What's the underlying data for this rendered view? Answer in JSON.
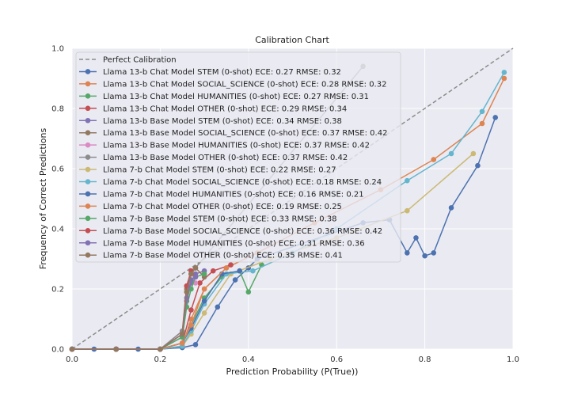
{
  "chart_data": {
    "type": "line",
    "title": "Calibration Chart",
    "xlabel": "Prediction Probability (P(True))",
    "ylabel": "Frequency of Correct Predictions",
    "xlim": [
      0,
      1
    ],
    "ylim": [
      0,
      1
    ],
    "xticks": [
      "0.0",
      "0.2",
      "0.4",
      "0.6",
      "0.8",
      "1.0"
    ],
    "yticks": [
      "0.0",
      "0.2",
      "0.4",
      "0.6",
      "0.8",
      "1.0"
    ],
    "grid": true,
    "legend_position": "upper-left",
    "reference": {
      "name": "Perfect Calibration",
      "x": [
        0,
        1
      ],
      "y": [
        0,
        1
      ],
      "color": "#8c8c8c",
      "style": "dashed"
    },
    "series": [
      {
        "name": "Llama 13-b Chat Model STEM (0-shot) ECE: 0.27 RMSE: 0.32",
        "color": "#4c72b0",
        "x": [
          0.0,
          0.05,
          0.1,
          0.15,
          0.2,
          0.25,
          0.28,
          0.33,
          0.37,
          0.4,
          0.42,
          0.66,
          0.72,
          0.76,
          0.78,
          0.8,
          0.82,
          0.86,
          0.92,
          0.96
        ],
        "y": [
          0.0,
          0.0,
          0.0,
          0.0,
          0.0,
          0.005,
          0.015,
          0.14,
          0.23,
          0.27,
          0.3,
          0.42,
          0.43,
          0.32,
          0.37,
          0.31,
          0.32,
          0.47,
          0.61,
          0.77
        ]
      },
      {
        "name": "Llama 13-b Chat Model SOCIAL_SCIENCE (0-shot) ECE: 0.28 RMSE: 0.32",
        "color": "#dd8452",
        "x": [
          0.0,
          0.1,
          0.2,
          0.25,
          0.27,
          0.3,
          0.35,
          0.42,
          0.55,
          0.7,
          0.82,
          0.93,
          0.98
        ],
        "y": [
          0.0,
          0.0,
          0.0,
          0.01,
          0.1,
          0.2,
          0.27,
          0.32,
          0.42,
          0.53,
          0.63,
          0.75,
          0.9
        ]
      },
      {
        "name": "Llama 13-b Chat Model HUMANITIES (0-shot) ECE: 0.27 RMSE: 0.31",
        "color": "#55a868",
        "x": [
          0.0,
          0.1,
          0.2,
          0.25,
          0.27,
          0.3,
          0.34,
          0.38,
          0.4,
          0.43
        ],
        "y": [
          0.0,
          0.0,
          0.0,
          0.02,
          0.08,
          0.17,
          0.24,
          0.26,
          0.19,
          0.28
        ]
      },
      {
        "name": "Llama 13-b Chat Model OTHER (0-shot) ECE: 0.29 RMSE: 0.34",
        "color": "#c44e52",
        "x": [
          0.0,
          0.1,
          0.2,
          0.25,
          0.27,
          0.29,
          0.32,
          0.36
        ],
        "y": [
          0.0,
          0.0,
          0.0,
          0.02,
          0.13,
          0.22,
          0.26,
          0.28
        ]
      },
      {
        "name": "Llama 13-b Base Model STEM (0-shot) ECE: 0.34 RMSE: 0.38",
        "color": "#8172b3",
        "x": [
          0.0,
          0.1,
          0.2,
          0.25,
          0.26,
          0.27,
          0.28,
          0.3
        ],
        "y": [
          0.0,
          0.0,
          0.0,
          0.04,
          0.16,
          0.22,
          0.25,
          0.26
        ]
      },
      {
        "name": "Llama 13-b Base Model SOCIAL_SCIENCE (0-shot) ECE: 0.37 RMSE: 0.42",
        "color": "#937860",
        "x": [
          0.0,
          0.1,
          0.2,
          0.25,
          0.26,
          0.27,
          0.28,
          0.3
        ],
        "y": [
          0.0,
          0.0,
          0.0,
          0.05,
          0.2,
          0.25,
          0.27,
          0.24
        ]
      },
      {
        "name": "Llama 13-b Base Model HUMANITIES (0-shot) ECE: 0.37 RMSE: 0.42",
        "color": "#da8bc3",
        "x": [
          0.0,
          0.1,
          0.2,
          0.25,
          0.26,
          0.27,
          0.28
        ],
        "y": [
          0.0,
          0.0,
          0.0,
          0.06,
          0.19,
          0.23,
          0.22
        ]
      },
      {
        "name": "Llama 13-b Base Model OTHER (0-shot) ECE: 0.37 RMSE: 0.42",
        "color": "#8c8c8c",
        "x": [
          0.0,
          0.1,
          0.2,
          0.25,
          0.26,
          0.27,
          0.28,
          0.66
        ],
        "y": [
          0.0,
          0.0,
          0.0,
          0.06,
          0.21,
          0.25,
          0.27,
          0.94
        ]
      },
      {
        "name": "Llama 7-b Chat Model STEM (0-shot) ECE: 0.22 RMSE: 0.27",
        "color": "#ccb974",
        "x": [
          0.0,
          0.1,
          0.2,
          0.25,
          0.27,
          0.3,
          0.36,
          0.45,
          0.6,
          0.76,
          0.91
        ],
        "y": [
          0.0,
          0.0,
          0.0,
          0.01,
          0.05,
          0.12,
          0.25,
          0.3,
          0.37,
          0.46,
          0.65
        ]
      },
      {
        "name": "Llama 7-b Chat Model SOCIAL_SCIENCE (0-shot) ECE: 0.18 RMSE: 0.24",
        "color": "#64b5cd",
        "x": [
          0.0,
          0.1,
          0.2,
          0.25,
          0.27,
          0.3,
          0.35,
          0.41,
          0.5,
          0.6,
          0.76,
          0.86,
          0.93,
          0.98
        ],
        "y": [
          0.0,
          0.0,
          0.0,
          0.01,
          0.06,
          0.15,
          0.25,
          0.26,
          0.32,
          0.4,
          0.56,
          0.65,
          0.79,
          0.92
        ]
      },
      {
        "name": "Llama 7-b Chat Model HUMANITIES (0-shot) ECE: 0.16 RMSE: 0.21",
        "color": "#4c72b0",
        "x": [
          0.0,
          0.1,
          0.2,
          0.25,
          0.27,
          0.3,
          0.34,
          0.38
        ],
        "y": [
          0.0,
          0.0,
          0.0,
          0.02,
          0.07,
          0.16,
          0.25,
          0.26
        ]
      },
      {
        "name": "Llama 7-b Chat Model OTHER (0-shot) ECE: 0.19 RMSE: 0.25",
        "color": "#dd8452",
        "x": [
          0.0,
          0.1,
          0.2,
          0.25,
          0.27,
          0.3,
          0.35
        ],
        "y": [
          0.0,
          0.0,
          0.0,
          0.02,
          0.08,
          0.2,
          0.27
        ]
      },
      {
        "name": "Llama 7-b Base Model STEM (0-shot) ECE: 0.33 RMSE: 0.38",
        "color": "#55a868",
        "x": [
          0.0,
          0.1,
          0.2,
          0.25,
          0.26,
          0.27,
          0.28,
          0.3
        ],
        "y": [
          0.0,
          0.0,
          0.0,
          0.04,
          0.14,
          0.2,
          0.24,
          0.25
        ]
      },
      {
        "name": "Llama 7-b Base Model SOCIAL_SCIENCE (0-shot) ECE: 0.36 RMSE: 0.42",
        "color": "#c44e52",
        "x": [
          0.0,
          0.1,
          0.2,
          0.25,
          0.26,
          0.27,
          0.28
        ],
        "y": [
          0.0,
          0.0,
          0.0,
          0.05,
          0.21,
          0.26,
          0.24
        ]
      },
      {
        "name": "Llama 7-b Base Model HUMANITIES (0-shot) ECE: 0.31 RMSE: 0.36",
        "color": "#8172b3",
        "x": [
          0.0,
          0.1,
          0.2,
          0.25,
          0.26,
          0.27,
          0.28
        ],
        "y": [
          0.0,
          0.0,
          0.0,
          0.05,
          0.17,
          0.23,
          0.24
        ]
      },
      {
        "name": "Llama 7-b Base Model OTHER (0-shot) ECE: 0.35 RMSE: 0.41",
        "color": "#937860",
        "x": [
          0.0,
          0.1,
          0.2,
          0.25,
          0.26,
          0.27,
          0.28
        ],
        "y": [
          0.0,
          0.0,
          0.0,
          0.05,
          0.19,
          0.25,
          0.27
        ]
      }
    ]
  }
}
